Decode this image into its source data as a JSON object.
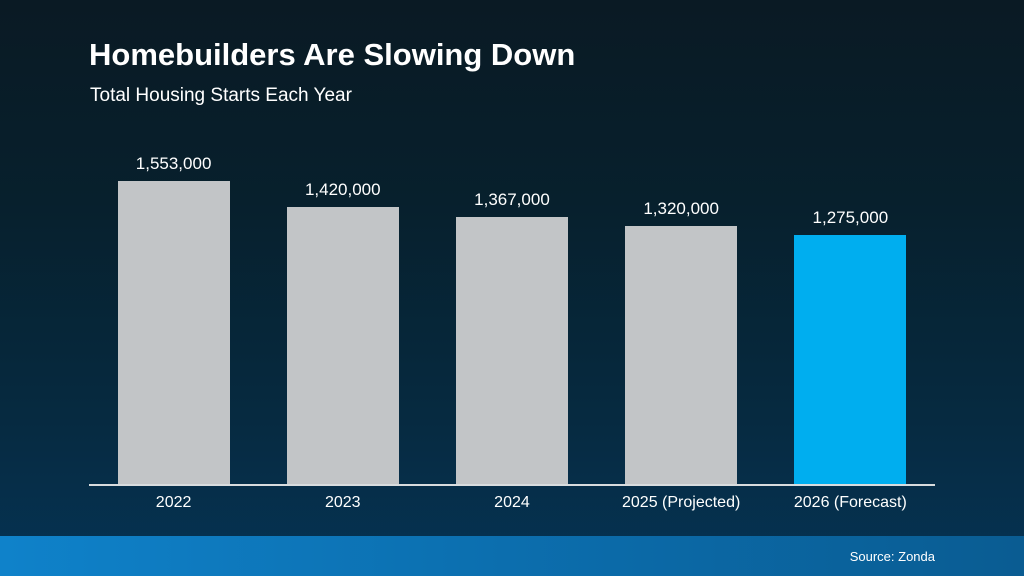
{
  "header": {
    "title": "Homebuilders Are Slowing Down",
    "subtitle": "Total Housing Starts Each Year"
  },
  "footer": {
    "source_label": "Source: Zonda"
  },
  "chart_data": {
    "type": "bar",
    "title": "Homebuilders Are Slowing Down",
    "subtitle": "Total Housing Starts Each Year",
    "categories": [
      "2022",
      "2023",
      "2024",
      "2025 (Projected)",
      "2026 (Forecast)"
    ],
    "values": [
      1553000,
      1420000,
      1367000,
      1320000,
      1275000
    ],
    "value_labels": [
      "1,553,000",
      "1,420,000",
      "1,367,000",
      "1,320,000",
      "1,275,000"
    ],
    "bar_colors": [
      "#c2c5c7",
      "#c2c5c7",
      "#c2c5c7",
      "#c2c5c7",
      "#00aeef"
    ],
    "xlabel": "",
    "ylabel": "",
    "ylim": [
      0,
      1600000
    ],
    "grid": false,
    "legend": false,
    "source": "Source: Zonda",
    "colors": {
      "default_bar": "#c2c5c7",
      "highlight_bar": "#00aeef",
      "axis_line": "#d8dcde",
      "text": "#ffffff",
      "background_top": "#0a1a24",
      "background_bottom": "#053354",
      "footer_gradient_left": "#0f82ca",
      "footer_gradient_right": "#0a5c92"
    }
  }
}
